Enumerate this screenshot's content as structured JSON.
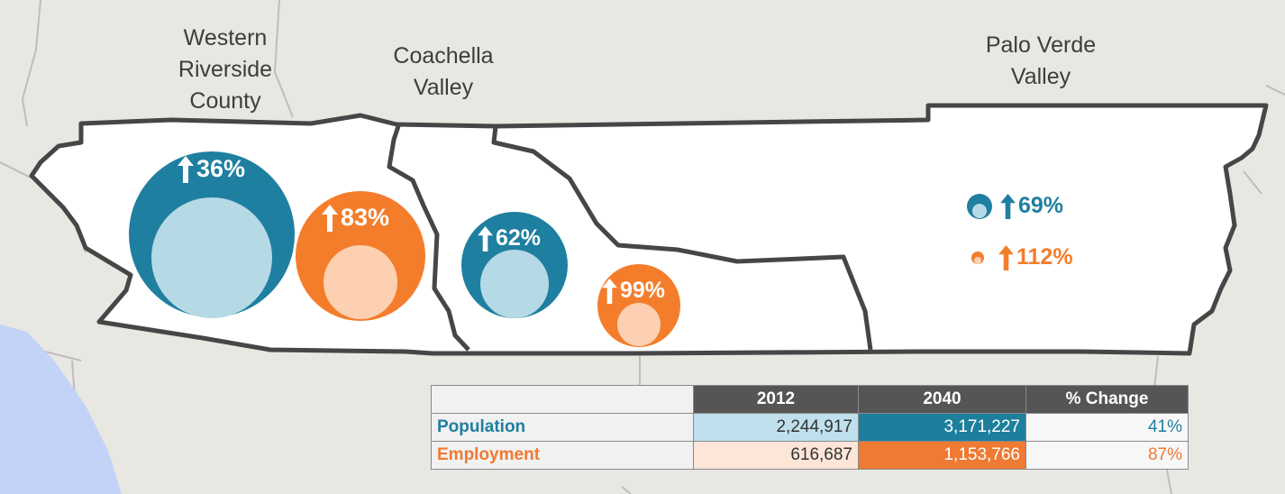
{
  "regions": [
    {
      "name": "Western\nRiverside\nCounty"
    },
    {
      "name": "Coachella\nValley"
    },
    {
      "name": "Palo Verde\nValley"
    }
  ],
  "growth_markers": [
    {
      "region": "Western Riverside County",
      "metric": "Population",
      "label": "36%",
      "color": "#1f7fa0"
    },
    {
      "region": "Western Riverside County",
      "metric": "Employment",
      "label": "83%",
      "color": "#f47d2c"
    },
    {
      "region": "Coachella Valley",
      "metric": "Population",
      "label": "62%",
      "color": "#1f7fa0"
    },
    {
      "region": "Coachella Valley",
      "metric": "Employment",
      "label": "99%",
      "color": "#f47d2c"
    },
    {
      "region": "Palo Verde Valley",
      "metric": "Population",
      "label": "69%",
      "color": "#1f7fa0"
    },
    {
      "region": "Palo Verde Valley",
      "metric": "Employment",
      "label": "112%",
      "color": "#f47d2c"
    }
  ],
  "table": {
    "headers": [
      "",
      "2012",
      "2040",
      "% Change"
    ],
    "rows": [
      {
        "label": "Population",
        "v2012": "2,244,917",
        "v2040": "3,171,227",
        "change": "41%"
      },
      {
        "label": "Employment",
        "v2012": "616,687",
        "v2040": "1,153,766",
        "change": "87%"
      }
    ]
  },
  "colors": {
    "population_dark": "#1f7fa0",
    "population_light": "#b5dae6",
    "employment_dark": "#f47d2c",
    "employment_light": "#fdd0b1",
    "table_pop_2012": "#bfe0ec",
    "table_pop_2040": "#1d7f9d",
    "table_emp_2012": "#fde5d7",
    "table_emp_2040": "#ee7a33",
    "ocean": "#c3d3f7",
    "land": "#e8e7e2",
    "county": "#ffffff",
    "border": "#464646"
  }
}
